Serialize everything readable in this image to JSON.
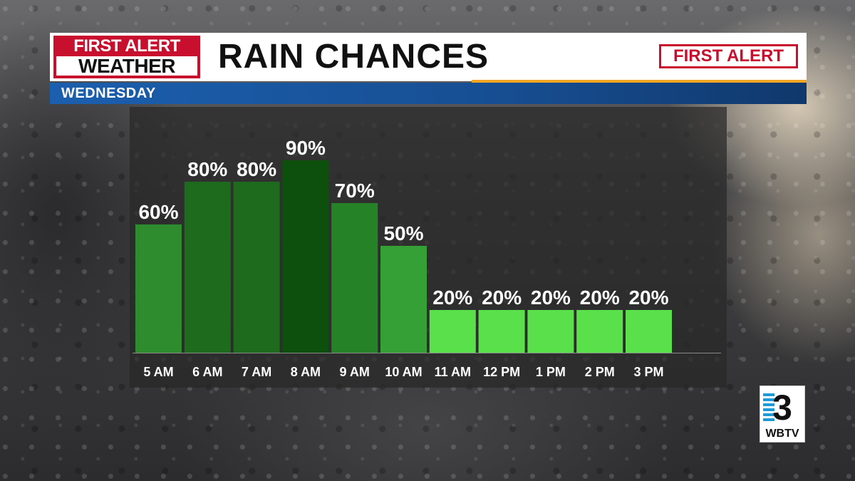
{
  "header": {
    "logo_line1": "FIRST ALERT",
    "logo_line2": "WEATHER",
    "title": "RAIN CHANCES",
    "badge": "FIRST ALERT",
    "subtitle": "WEDNESDAY"
  },
  "station": {
    "mark": "3",
    "name": "WBTV"
  },
  "colors": {
    "brand_red": "#c8102e",
    "banner_blue": "#1b5fae",
    "accent_orange": "#f5a623",
    "bar_greens": [
      "#2e8b2e",
      "#1e6b1e",
      "#1e6b1e",
      "#0d500d",
      "#268226",
      "#35a035",
      "#5ae04a",
      "#5ae04a",
      "#5ae04a",
      "#5ae04a",
      "#5ae04a"
    ]
  },
  "chart_data": {
    "type": "bar",
    "title": "RAIN CHANCES",
    "subtitle": "WEDNESDAY",
    "categories": [
      "5 AM",
      "6 AM",
      "7 AM",
      "8 AM",
      "9 AM",
      "10 AM",
      "11 AM",
      "12 PM",
      "1 PM",
      "2 PM",
      "3 PM"
    ],
    "values": [
      60,
      80,
      80,
      90,
      70,
      50,
      20,
      20,
      20,
      20,
      20
    ],
    "value_suffix": "%",
    "ylim": [
      0,
      100
    ],
    "grid": false,
    "xlabel": "",
    "ylabel": ""
  }
}
